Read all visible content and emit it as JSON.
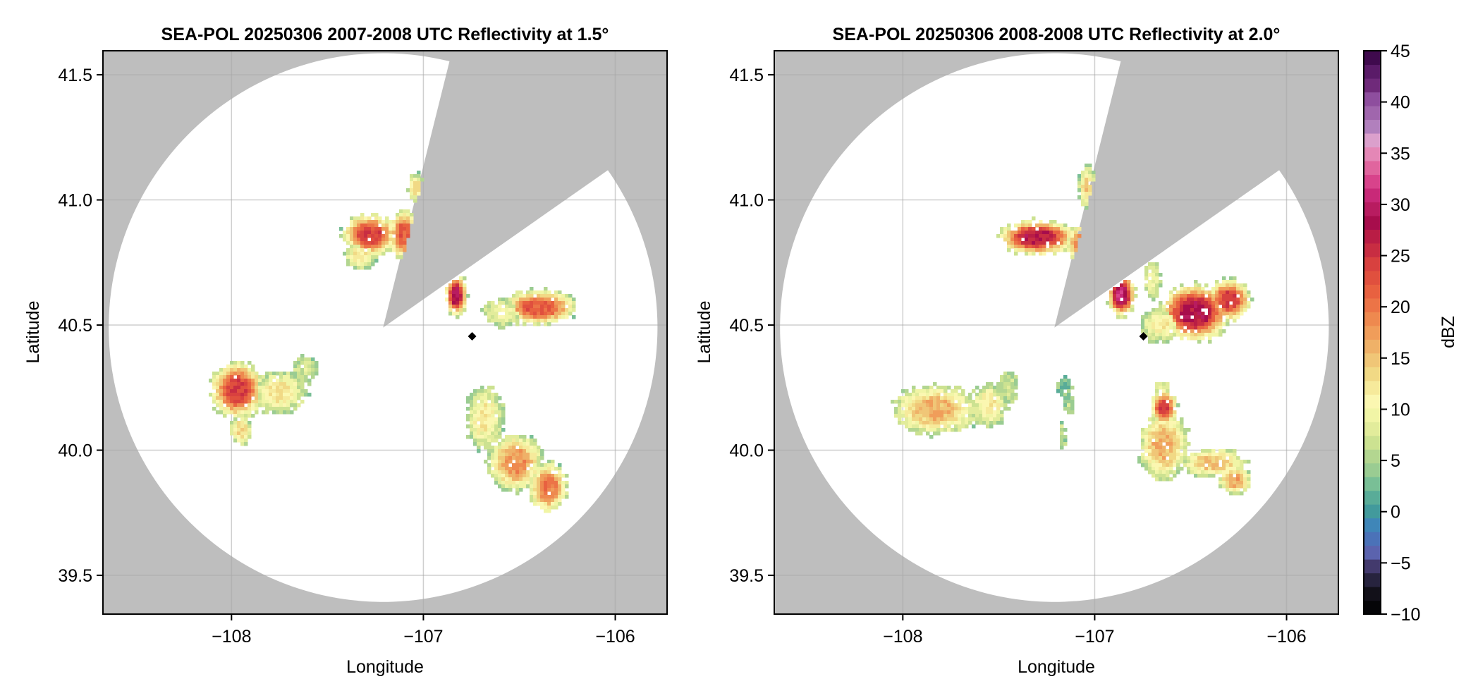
{
  "figure": {
    "colorbar": {
      "label": "dBZ",
      "range": [
        -10,
        45
      ],
      "ticks": [
        -10,
        -5,
        0,
        5,
        10,
        15,
        20,
        25,
        30,
        35,
        40,
        45
      ],
      "tick_labels": [
        "−10",
        "−5",
        "0",
        "5",
        "10",
        "15",
        "20",
        "25",
        "30",
        "35",
        "40",
        "45"
      ],
      "band_step_dbz": 1.5,
      "colors_top_to_bottom": [
        "#3f0a4d",
        "#5a1b68",
        "#6f2a7a",
        "#8e4e9e",
        "#a066ad",
        "#b180bd",
        "#dba0cc",
        "#e487b6",
        "#e0659e",
        "#d8438b",
        "#c82978",
        "#b81c60",
        "#a70d4c",
        "#b91d45",
        "#c82d42",
        "#d8413f",
        "#e0503e",
        "#e86140",
        "#ec7447",
        "#ee894f",
        "#f09d5a",
        "#efb168",
        "#f0c677",
        "#f1d985",
        "#f6ea9b",
        "#fbf7b1",
        "#f1f5a6",
        "#e2ec9b",
        "#cce291",
        "#b3d690",
        "#9acc92",
        "#79bf96",
        "#59ac98",
        "#429a9c",
        "#3f86b8",
        "#4b72b8",
        "#5b63ae",
        "#433a6d",
        "#27233e",
        "#121019",
        "#050508"
      ]
    },
    "colors": {
      "no_coverage": "#bebebe",
      "coverage": "#ffffff",
      "grid": "#a8a8a8",
      "radar_marker": "#000000"
    }
  },
  "chart_data": [
    {
      "type": "heatmap",
      "title": "SEA-POL 20250306 2007-2008 UTC Reflectivity at 1.5°",
      "xlabel": "Longitude",
      "ylabel": "Latitude",
      "xlim": [
        -108.67,
        -105.73
      ],
      "ylim": [
        39.345,
        41.596
      ],
      "xticks": [
        -108,
        -107,
        -106
      ],
      "xtick_labels": [
        "−108",
        "−107",
        "−106"
      ],
      "yticks": [
        39.5,
        40.0,
        40.5,
        41.0,
        41.5
      ],
      "ytick_labels": [
        "39.5",
        "40.0",
        "40.5",
        "41.0",
        "41.5"
      ],
      "grid": true,
      "radar_site": {
        "lon": -107.21,
        "lat": 40.49,
        "range_deg_lon": 1.43
      },
      "blocked_sector_deg_from_north": [
        14,
        55
      ],
      "marker": {
        "lon": -106.746,
        "lat": 40.455,
        "shape": "diamond"
      },
      "cells": [
        {
          "lon": -107.28,
          "lat": 40.86,
          "peak_dbz": 24,
          "sx": 0.1,
          "sy": 0.06
        },
        {
          "lon": -107.1,
          "lat": 40.86,
          "peak_dbz": 22,
          "sx": 0.06,
          "sy": 0.07
        },
        {
          "lon": -107.33,
          "lat": 40.78,
          "peak_dbz": 12,
          "sx": 0.06,
          "sy": 0.04
        },
        {
          "lon": -107.04,
          "lat": 41.05,
          "peak_dbz": 13,
          "sx": 0.03,
          "sy": 0.04
        },
        {
          "lon": -106.83,
          "lat": 40.62,
          "peak_dbz": 28,
          "sx": 0.04,
          "sy": 0.06
        },
        {
          "lon": -106.4,
          "lat": 40.57,
          "peak_dbz": 22,
          "sx": 0.14,
          "sy": 0.05
        },
        {
          "lon": -106.58,
          "lat": 40.55,
          "peak_dbz": 10,
          "sx": 0.08,
          "sy": 0.04
        },
        {
          "lon": -107.97,
          "lat": 40.24,
          "peak_dbz": 24,
          "sx": 0.1,
          "sy": 0.08
        },
        {
          "lon": -107.75,
          "lat": 40.23,
          "peak_dbz": 12,
          "sx": 0.1,
          "sy": 0.06
        },
        {
          "lon": -107.62,
          "lat": 40.32,
          "peak_dbz": 7,
          "sx": 0.05,
          "sy": 0.04
        },
        {
          "lon": -107.95,
          "lat": 40.08,
          "peak_dbz": 14,
          "sx": 0.04,
          "sy": 0.04
        },
        {
          "lon": -106.68,
          "lat": 40.13,
          "peak_dbz": 12,
          "sx": 0.07,
          "sy": 0.09
        },
        {
          "lon": -106.52,
          "lat": 39.95,
          "peak_dbz": 18,
          "sx": 0.1,
          "sy": 0.08
        },
        {
          "lon": -106.35,
          "lat": 39.85,
          "peak_dbz": 20,
          "sx": 0.07,
          "sy": 0.07
        }
      ]
    },
    {
      "type": "heatmap",
      "title": "SEA-POL 20250306 2008-2008 UTC Reflectivity at 2.0°",
      "xlabel": "Longitude",
      "ylabel": "Latitude",
      "xlim": [
        -108.67,
        -105.73
      ],
      "ylim": [
        39.345,
        41.596
      ],
      "xticks": [
        -108,
        -107,
        -106
      ],
      "xtick_labels": [
        "−108",
        "−107",
        "−106"
      ],
      "yticks": [
        39.5,
        40.0,
        40.5,
        41.0,
        41.5
      ],
      "ytick_labels": [
        "39.5",
        "40.0",
        "40.5",
        "41.0",
        "41.5"
      ],
      "grid": true,
      "radar_site": {
        "lon": -107.21,
        "lat": 40.49,
        "range_deg_lon": 1.43
      },
      "blocked_sector_deg_from_north": [
        14,
        55
      ],
      "marker": {
        "lon": -106.746,
        "lat": 40.455,
        "shape": "diamond"
      },
      "cells": [
        {
          "lon": -107.3,
          "lat": 40.85,
          "peak_dbz": 27,
          "sx": 0.14,
          "sy": 0.05
        },
        {
          "lon": -107.08,
          "lat": 40.83,
          "peak_dbz": 18,
          "sx": 0.05,
          "sy": 0.05
        },
        {
          "lon": -107.04,
          "lat": 41.05,
          "peak_dbz": 14,
          "sx": 0.03,
          "sy": 0.06
        },
        {
          "lon": -106.86,
          "lat": 40.62,
          "peak_dbz": 30,
          "sx": 0.05,
          "sy": 0.06
        },
        {
          "lon": -106.7,
          "lat": 40.68,
          "peak_dbz": 10,
          "sx": 0.03,
          "sy": 0.06
        },
        {
          "lon": -106.48,
          "lat": 40.55,
          "peak_dbz": 28,
          "sx": 0.13,
          "sy": 0.08
        },
        {
          "lon": -106.3,
          "lat": 40.6,
          "peak_dbz": 24,
          "sx": 0.08,
          "sy": 0.06
        },
        {
          "lon": -106.65,
          "lat": 40.5,
          "peak_dbz": 11,
          "sx": 0.08,
          "sy": 0.05
        },
        {
          "lon": -107.83,
          "lat": 40.16,
          "peak_dbz": 16,
          "sx": 0.16,
          "sy": 0.07
        },
        {
          "lon": -107.55,
          "lat": 40.18,
          "peak_dbz": 12,
          "sx": 0.07,
          "sy": 0.06
        },
        {
          "lon": -107.45,
          "lat": 40.25,
          "peak_dbz": 7,
          "sx": 0.04,
          "sy": 0.05
        },
        {
          "lon": -107.16,
          "lat": 40.25,
          "peak_dbz": 3,
          "sx": 0.03,
          "sy": 0.03
        },
        {
          "lon": -107.13,
          "lat": 40.18,
          "peak_dbz": 6,
          "sx": 0.02,
          "sy": 0.03
        },
        {
          "lon": -107.17,
          "lat": 40.06,
          "peak_dbz": 7,
          "sx": 0.015,
          "sy": 0.04
        },
        {
          "lon": -106.64,
          "lat": 40.17,
          "peak_dbz": 24,
          "sx": 0.05,
          "sy": 0.05
        },
        {
          "lon": -106.64,
          "lat": 40.02,
          "peak_dbz": 16,
          "sx": 0.09,
          "sy": 0.1
        },
        {
          "lon": -106.65,
          "lat": 40.25,
          "peak_dbz": 10,
          "sx": 0.03,
          "sy": 0.02
        },
        {
          "lon": -106.38,
          "lat": 39.95,
          "peak_dbz": 15,
          "sx": 0.12,
          "sy": 0.04
        },
        {
          "lon": -106.27,
          "lat": 39.88,
          "peak_dbz": 17,
          "sx": 0.06,
          "sy": 0.04
        }
      ]
    }
  ]
}
